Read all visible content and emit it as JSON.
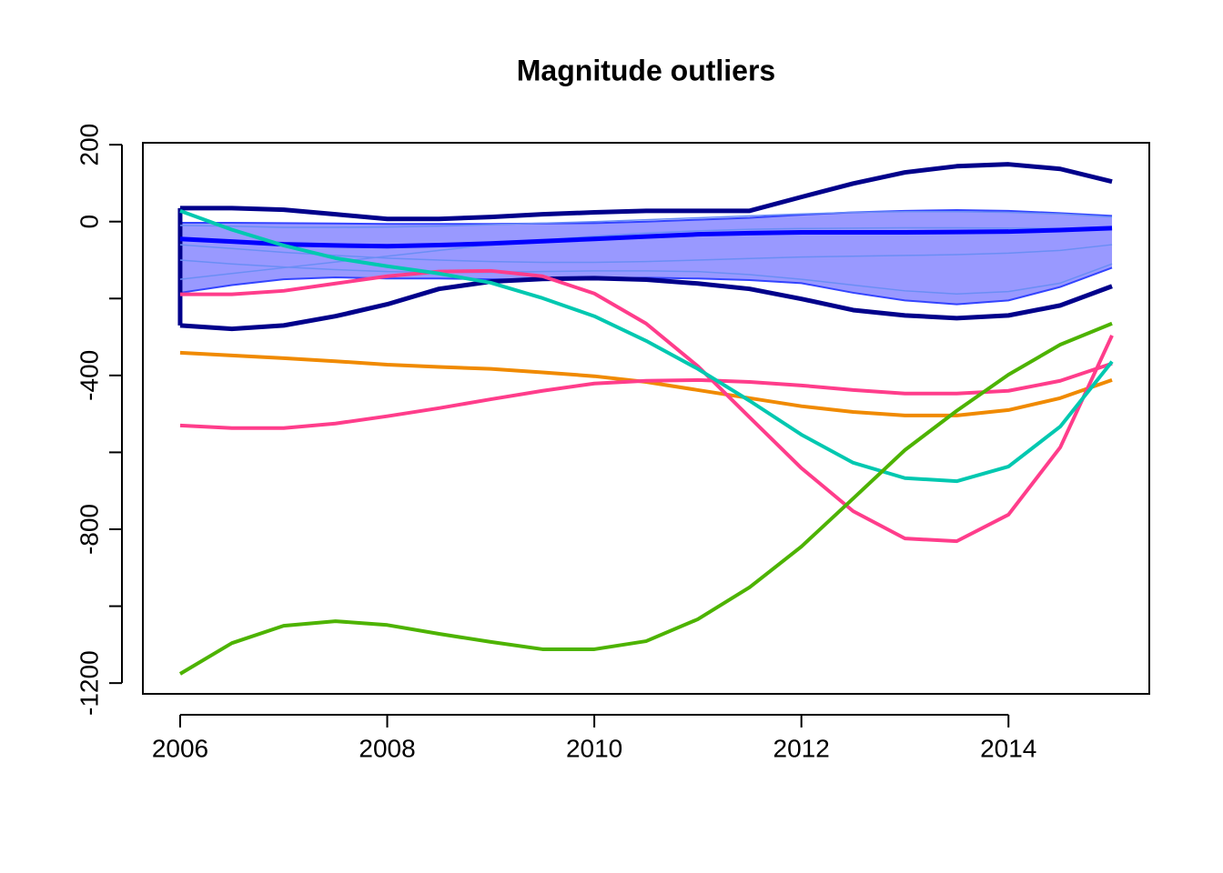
{
  "chart_data": {
    "type": "line",
    "title": "Magnitude outliers",
    "x": [
      2006,
      2006.5,
      2007,
      2007.5,
      2008,
      2008.5,
      2009,
      2009.5,
      2010,
      2010.5,
      2011,
      2011.5,
      2012,
      2012.5,
      2013,
      2013.5,
      2014,
      2014.5,
      2015
    ],
    "xlim": [
      2005.64,
      2015.36
    ],
    "xticks": [
      2006,
      2008,
      2010,
      2012,
      2014
    ],
    "ylim": [
      -1228,
      205
    ],
    "yticks": [
      -1200,
      -800,
      -400,
      0,
      200
    ],
    "yminor_ticks": [
      -1000,
      -600,
      -200
    ],
    "band": {
      "color": "#9999ff",
      "edge_color": "#3344ff",
      "upper": [
        -3,
        -3,
        -4,
        -5,
        -6,
        -6,
        -6,
        -5,
        -4,
        0,
        5,
        10,
        18,
        24,
        28,
        30,
        28,
        22,
        15
      ],
      "lower": [
        -185,
        -165,
        -150,
        -145,
        -148,
        -148,
        -150,
        -150,
        -148,
        -146,
        -148,
        -152,
        -160,
        -185,
        -205,
        -215,
        -205,
        -170,
        -120
      ]
    },
    "series": [
      {
        "color": "#6a8ef5",
        "line_width": 1.5,
        "values": [
          -10,
          -12,
          -15,
          -15,
          -14,
          -12,
          -8,
          -4,
          0,
          5,
          10,
          15,
          20,
          24,
          26,
          26,
          24,
          20,
          12
        ]
      },
      {
        "color": "#6a8ef5",
        "line_width": 1.5,
        "values": [
          -60,
          -70,
          -80,
          -88,
          -95,
          -100,
          -104,
          -106,
          -106,
          -104,
          -100,
          -96,
          -92,
          -90,
          -88,
          -86,
          -82,
          -75,
          -60
        ]
      },
      {
        "color": "#6a8ef5",
        "line_width": 1.5,
        "values": [
          -150,
          -135,
          -120,
          -105,
          -90,
          -75,
          -60,
          -48,
          -38,
          -30,
          -24,
          -20,
          -18,
          -17,
          -16,
          -16,
          -17,
          -18,
          -20
        ]
      },
      {
        "color": "#6a8ef5",
        "line_width": 1.5,
        "values": [
          -100,
          -110,
          -118,
          -125,
          -130,
          -132,
          -132,
          -130,
          -128,
          -128,
          -130,
          -138,
          -150,
          -165,
          -180,
          -188,
          -182,
          -160,
          -110
        ]
      },
      {
        "color": "#00008b",
        "line_width": 5,
        "values": [
          35,
          35,
          31,
          19,
          7,
          7,
          12,
          19,
          24,
          28,
          28,
          28,
          64,
          99,
          128,
          144,
          149,
          137,
          104
        ]
      },
      {
        "color": "#00008b",
        "line_width": 5,
        "values": [
          -270,
          -279,
          -270,
          -246,
          -215,
          -175,
          -156,
          -149,
          -147,
          -151,
          -161,
          -175,
          -201,
          -230,
          -244,
          -251,
          -244,
          -218,
          -168
        ]
      },
      {
        "color": "#0000ff",
        "line_width": 5,
        "values": [
          -45,
          -52,
          -59,
          -62,
          -64,
          -61,
          -57,
          -51,
          -45,
          -39,
          -33,
          -30,
          -28,
          -28,
          -28,
          -27,
          -26,
          -22,
          -17
        ]
      },
      {
        "color": "#f08a00",
        "line_width": 4,
        "values": [
          -341,
          -348,
          -355,
          -363,
          -372,
          -378,
          -383,
          -392,
          -402,
          -417,
          -438,
          -459,
          -480,
          -495,
          -504,
          -504,
          -490,
          -459,
          -412
        ]
      },
      {
        "color": "#ff3d8b",
        "line_width": 4,
        "values": [
          -530,
          -537,
          -537,
          -525,
          -506,
          -485,
          -462,
          -440,
          -421,
          -414,
          -412,
          -417,
          -426,
          -438,
          -447,
          -447,
          -440,
          -414,
          -369
        ]
      },
      {
        "color": "#ff3d8b",
        "line_width": 4,
        "values": [
          -189,
          -189,
          -180,
          -161,
          -142,
          -130,
          -128,
          -142,
          -187,
          -265,
          -376,
          -509,
          -641,
          -753,
          -824,
          -831,
          -762,
          -587,
          -296
        ]
      },
      {
        "color": "#00c8b0",
        "line_width": 4,
        "values": [
          28,
          -21,
          -62,
          -95,
          -116,
          -135,
          -159,
          -199,
          -246,
          -310,
          -383,
          -466,
          -554,
          -627,
          -667,
          -675,
          -637,
          -533,
          -364
        ]
      },
      {
        "color": "#4db300",
        "line_width": 4,
        "values": [
          -1176,
          -1096,
          -1051,
          -1039,
          -1049,
          -1072,
          -1093,
          -1112,
          -1112,
          -1091,
          -1034,
          -951,
          -845,
          -720,
          -594,
          -492,
          -398,
          -320,
          -265
        ]
      }
    ],
    "envelope": {
      "color": "#00008b",
      "upper_series": 4,
      "lower_series": 5
    }
  }
}
